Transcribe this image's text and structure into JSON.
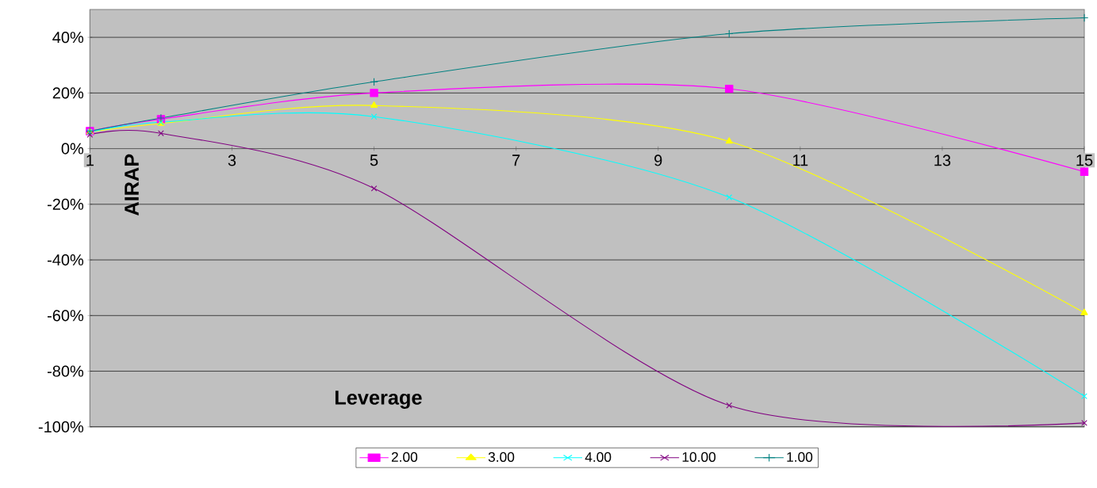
{
  "chart_data": {
    "type": "line",
    "xlabel": "Leverage",
    "ylabel": "AIRAP",
    "xlim": [
      1,
      15
    ],
    "ylim": [
      -100,
      50
    ],
    "xticks": [
      1,
      3,
      5,
      7,
      9,
      11,
      13,
      15
    ],
    "yticks": [
      {
        "value": -100,
        "label": "-100%"
      },
      {
        "value": -80,
        "label": "-80%"
      },
      {
        "value": -60,
        "label": "-60%"
      },
      {
        "value": -40,
        "label": "-40%"
      },
      {
        "value": -20,
        "label": "-20%"
      },
      {
        "value": 0,
        "label": "0%"
      },
      {
        "value": 20,
        "label": "20%"
      },
      {
        "value": 40,
        "label": "40%"
      }
    ],
    "grid": "y",
    "legend": "bottom",
    "x": [
      1,
      2,
      5,
      10,
      15
    ],
    "series": [
      {
        "name": "2.00",
        "color": "#ff00ff",
        "marker": "square",
        "values": [
          6.3,
          10.6,
          20,
          21.5,
          -8.3
        ]
      },
      {
        "name": "3.00",
        "color": "#ffff00",
        "marker": "triangle",
        "values": [
          6,
          9,
          15.5,
          2.6,
          -59
        ]
      },
      {
        "name": "4.00",
        "color": "#00ffff",
        "marker": "cross",
        "values": [
          6,
          9.5,
          11.5,
          -17.5,
          -89
        ]
      },
      {
        "name": "10.00",
        "color": "#800080",
        "marker": "cross",
        "values": [
          5,
          5.5,
          -14.3,
          -92.3,
          -98.6
        ]
      },
      {
        "name": "1.00",
        "color": "#008080",
        "marker": "plus",
        "values": [
          6.3,
          11,
          24,
          41.3,
          47
        ]
      }
    ]
  }
}
